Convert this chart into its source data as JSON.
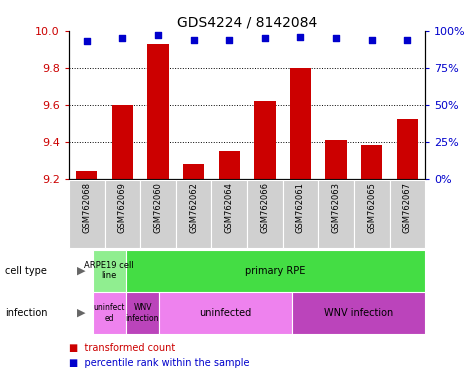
{
  "title": "GDS4224 / 8142084",
  "samples": [
    "GSM762068",
    "GSM762069",
    "GSM762060",
    "GSM762062",
    "GSM762064",
    "GSM762066",
    "GSM762061",
    "GSM762063",
    "GSM762065",
    "GSM762067"
  ],
  "transformed_count": [
    9.24,
    9.6,
    9.93,
    9.28,
    9.35,
    9.62,
    9.8,
    9.41,
    9.38,
    9.52
  ],
  "percentile_rank": [
    93,
    95,
    97,
    94,
    94,
    95,
    96,
    95,
    94,
    94
  ],
  "ylim_left": [
    9.2,
    10.0
  ],
  "ylim_right": [
    0,
    100
  ],
  "yticks_left": [
    9.2,
    9.4,
    9.6,
    9.8,
    10.0
  ],
  "yticks_right": [
    0,
    25,
    50,
    75,
    100
  ],
  "ytick_labels_right": [
    "0%",
    "25%",
    "50%",
    "75%",
    "100%"
  ],
  "bar_color": "#cc0000",
  "dot_color": "#0000cc",
  "bar_bottom": 9.2,
  "cell_type_light_green": "#90ee90",
  "cell_type_green": "#44dd44",
  "infection_light_purple": "#ee82ee",
  "infection_dark_purple": "#bb44bb",
  "sample_bg_color": "#d0d0d0",
  "legend_labels": [
    "transformed count",
    "percentile rank within the sample"
  ],
  "legend_colors": [
    "#cc0000",
    "#0000cc"
  ],
  "title_fontsize": 10,
  "axis_fontsize": 8,
  "sample_fontsize": 6,
  "annotation_fontsize": 7
}
